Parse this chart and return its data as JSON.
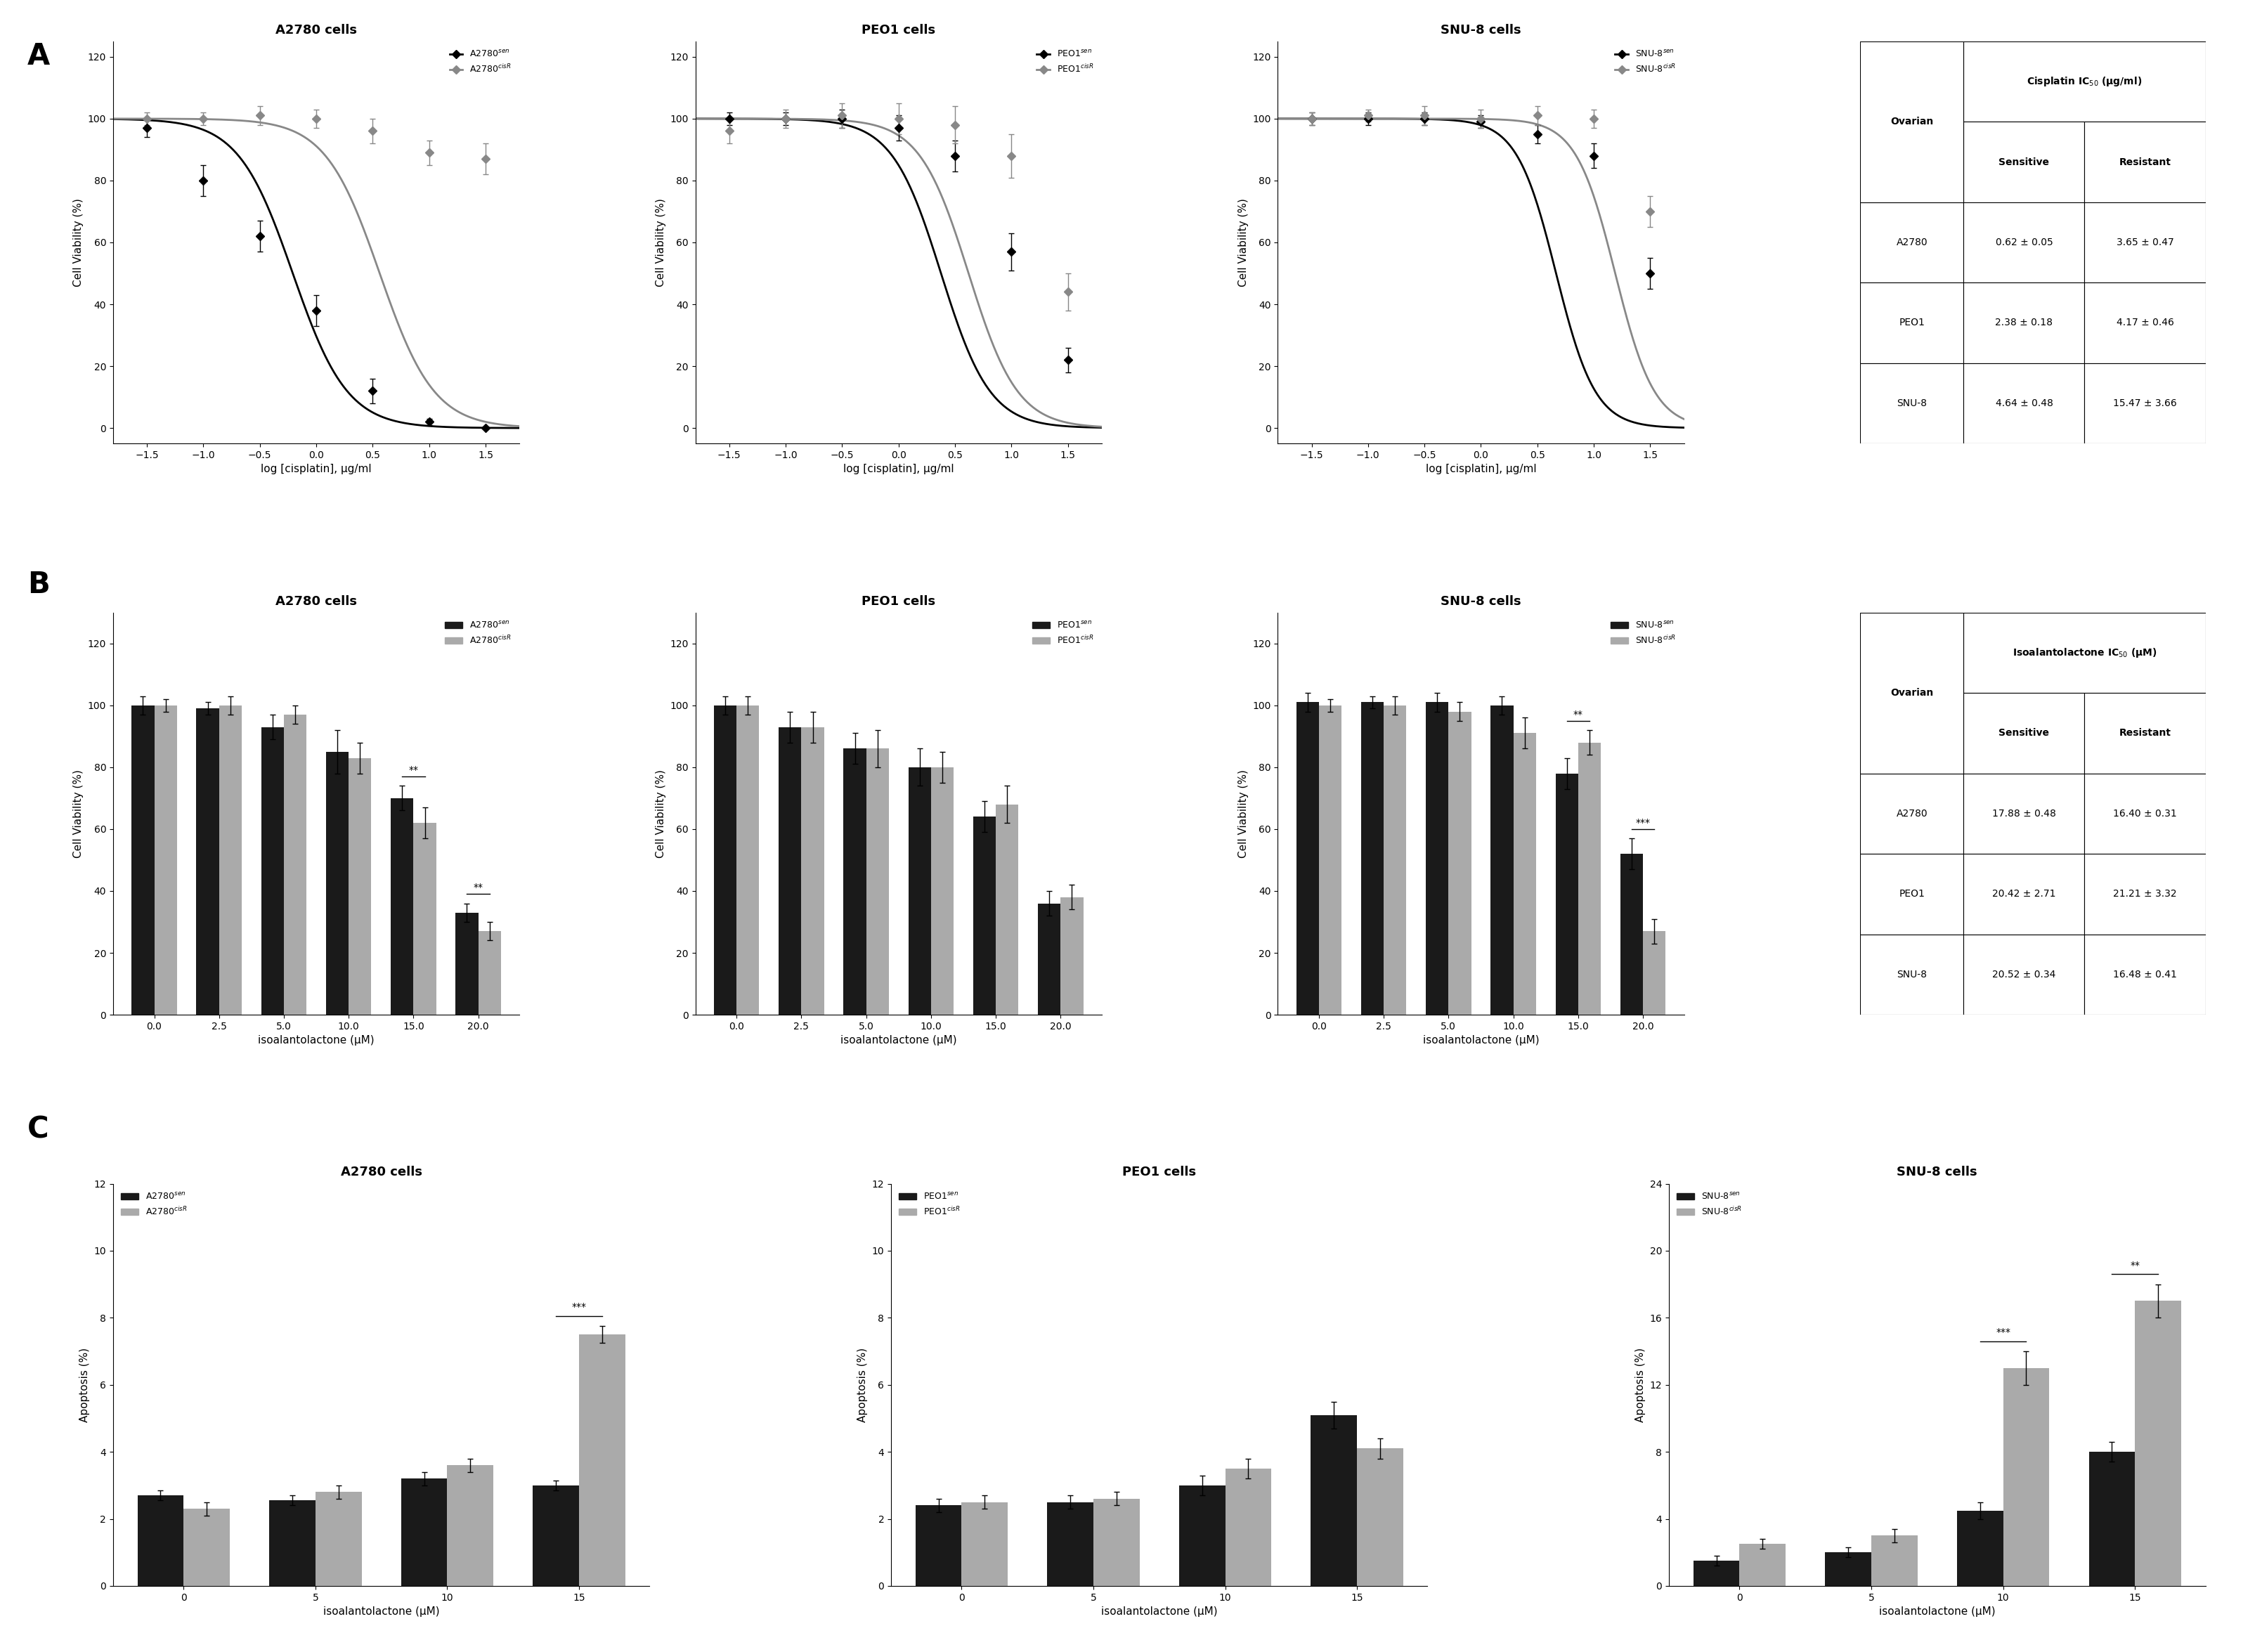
{
  "line_color_sen": "#000000",
  "line_color_res": "#888888",
  "bar_color_sen": "#1a1a1a",
  "bar_color_res": "#aaaaaa",
  "subplot_titles_A": [
    "A2780 cells",
    "PEO1 cells",
    "SNU-8 cells"
  ],
  "subplot_titles_B": [
    "A2780 cells",
    "PEO1 cells",
    "SNU-8 cells"
  ],
  "subplot_titles_C": [
    "A2780 cells",
    "PEO1 cells",
    "SNU-8 cells"
  ],
  "panelA": {
    "xlabel": "log [cisplatin], μg/ml",
    "ylabel": "Cell Viability (%)",
    "xlim": [
      -1.8,
      1.8
    ],
    "ylim": [
      -5,
      125
    ],
    "xticks": [
      -1.5,
      -1.0,
      -0.5,
      0.0,
      0.5,
      1.0,
      1.5
    ],
    "yticks": [
      0,
      20,
      40,
      60,
      80,
      100,
      120
    ],
    "A2780_sen_ic50_log": -0.208,
    "A2780_res_ic50_log": 0.562,
    "A2780_sen_hill": 1.8,
    "A2780_res_hill": 1.8,
    "A2780_sen_x": [
      -1.5,
      -1.0,
      -0.5,
      0.0,
      0.5,
      1.0,
      1.5
    ],
    "A2780_sen_y": [
      97,
      80,
      62,
      38,
      12,
      2,
      0
    ],
    "A2780_sen_err": [
      3,
      5,
      5,
      5,
      4,
      1,
      0.5
    ],
    "A2780_res_x": [
      -1.5,
      -1.0,
      -0.5,
      0.0,
      0.5,
      1.0,
      1.5
    ],
    "A2780_res_y": [
      100,
      100,
      101,
      100,
      96,
      89,
      87
    ],
    "A2780_res_err": [
      2,
      2,
      3,
      3,
      4,
      4,
      5
    ],
    "PEO1_sen_ic50_log": 0.376,
    "PEO1_res_ic50_log": 0.62,
    "PEO1_sen_hill": 2.0,
    "PEO1_res_hill": 2.0,
    "PEO1_sen_x": [
      -1.5,
      -1.0,
      -0.5,
      0.0,
      0.5,
      1.0,
      1.5
    ],
    "PEO1_sen_y": [
      100,
      100,
      100,
      97,
      88,
      57,
      22
    ],
    "PEO1_sen_err": [
      2,
      2,
      3,
      4,
      5,
      6,
      4
    ],
    "PEO1_res_x": [
      -1.5,
      -1.0,
      -0.5,
      0.0,
      0.5,
      1.0,
      1.5
    ],
    "PEO1_res_y": [
      96,
      100,
      101,
      100,
      98,
      88,
      44
    ],
    "PEO1_res_err": [
      4,
      3,
      4,
      5,
      6,
      7,
      6
    ],
    "SNU8_sen_ic50_log": 0.666,
    "SNU8_res_ic50_log": 1.19,
    "SNU8_sen_hill": 2.5,
    "SNU8_res_hill": 2.5,
    "SNU8_sen_x": [
      -1.5,
      -1.0,
      -0.5,
      0.0,
      0.5,
      1.0,
      1.5
    ],
    "SNU8_sen_y": [
      100,
      100,
      100,
      99,
      95,
      88,
      50
    ],
    "SNU8_sen_err": [
      2,
      2,
      2,
      2,
      3,
      4,
      5
    ],
    "SNU8_res_x": [
      -1.5,
      -1.0,
      -0.5,
      0.0,
      0.5,
      1.0,
      1.5
    ],
    "SNU8_res_y": [
      100,
      101,
      101,
      100,
      101,
      100,
      70
    ],
    "SNU8_res_err": [
      2,
      2,
      3,
      3,
      3,
      3,
      5
    ]
  },
  "panelB": {
    "xlabel": "isoalantolactone (μM)",
    "ylabel": "Cell Viability (%)",
    "xtick_labels": [
      "0.0",
      "2.5",
      "5.0",
      "10.0",
      "15.0",
      "20.0"
    ],
    "ylim": [
      0,
      130
    ],
    "yticks": [
      0,
      20,
      40,
      60,
      80,
      100,
      120
    ],
    "A2780_sen": [
      100,
      99,
      93,
      85,
      70,
      33
    ],
    "A2780_sen_err": [
      3,
      2,
      4,
      7,
      4,
      3
    ],
    "A2780_res": [
      100,
      100,
      97,
      83,
      62,
      27
    ],
    "A2780_res_err": [
      2,
      3,
      3,
      5,
      5,
      3
    ],
    "PEO1_sen": [
      100,
      93,
      86,
      80,
      64,
      36
    ],
    "PEO1_sen_err": [
      3,
      5,
      5,
      6,
      5,
      4
    ],
    "PEO1_res": [
      100,
      93,
      86,
      80,
      68,
      38
    ],
    "PEO1_res_err": [
      3,
      5,
      6,
      5,
      6,
      4
    ],
    "SNU8_sen": [
      101,
      101,
      101,
      100,
      78,
      52
    ],
    "SNU8_sen_err": [
      3,
      2,
      3,
      3,
      5,
      5
    ],
    "SNU8_res": [
      100,
      100,
      98,
      91,
      88,
      27
    ],
    "SNU8_res_err": [
      2,
      3,
      3,
      5,
      4,
      4
    ],
    "A2780_sig": [
      [
        4,
        "**"
      ],
      [
        5,
        "**"
      ]
    ],
    "SNU8_sig": [
      [
        4,
        "**"
      ],
      [
        5,
        "***"
      ]
    ]
  },
  "panelC": {
    "xlabel": "isoalantolactone (μM)",
    "xtick_labels": [
      "0",
      "5",
      "10",
      "15"
    ],
    "A2780_sen": [
      2.7,
      2.55,
      3.2,
      3.0
    ],
    "A2780_sen_err": [
      0.15,
      0.15,
      0.2,
      0.15
    ],
    "A2780_res": [
      2.3,
      2.8,
      3.6,
      7.5
    ],
    "A2780_res_err": [
      0.2,
      0.2,
      0.2,
      0.25
    ],
    "A2780_ylim": [
      0,
      12
    ],
    "A2780_yticks": [
      0,
      2,
      4,
      6,
      8,
      10,
      12
    ],
    "A2780_sig": [
      [
        3,
        "***"
      ]
    ],
    "PEO1_sen": [
      2.4,
      2.5,
      3.0,
      5.1
    ],
    "PEO1_sen_err": [
      0.2,
      0.2,
      0.3,
      0.4
    ],
    "PEO1_res": [
      2.5,
      2.6,
      3.5,
      4.1
    ],
    "PEO1_res_err": [
      0.2,
      0.2,
      0.3,
      0.3
    ],
    "PEO1_ylim": [
      0,
      12
    ],
    "PEO1_yticks": [
      0,
      2,
      4,
      6,
      8,
      10,
      12
    ],
    "SNU8_sen": [
      1.5,
      2.0,
      4.5,
      8.0
    ],
    "SNU8_sen_err": [
      0.3,
      0.3,
      0.5,
      0.6
    ],
    "SNU8_res": [
      2.5,
      3.0,
      13.0,
      17.0
    ],
    "SNU8_res_err": [
      0.3,
      0.4,
      1.0,
      1.0
    ],
    "SNU8_ylim": [
      0,
      24
    ],
    "SNU8_yticks": [
      0,
      4,
      8,
      12,
      16,
      20,
      24
    ],
    "SNU8_sig": [
      [
        2,
        "***"
      ],
      [
        3,
        "**"
      ]
    ]
  },
  "table_A_rows": [
    [
      "A2780",
      "0.62 ± 0.05",
      "3.65 ± 0.47"
    ],
    [
      "PEO1",
      "2.38 ± 0.18",
      "4.17 ± 0.46"
    ],
    [
      "SNU-8",
      "4.64 ± 0.48",
      "15.47 ± 3.66"
    ]
  ],
  "table_A_header": "Cisplatin IC$_{50}$ (μg/ml)",
  "table_B_rows": [
    [
      "A2780",
      "17.88 ± 0.48",
      "16.40 ± 0.31"
    ],
    [
      "PEO1",
      "20.42 ± 2.71",
      "21.21 ± 3.32"
    ],
    [
      "SNU-8",
      "20.52 ± 0.34",
      "16.48 ± 0.41"
    ]
  ],
  "table_B_header": "Isoalantolactone IC$_{50}$ (μM)"
}
